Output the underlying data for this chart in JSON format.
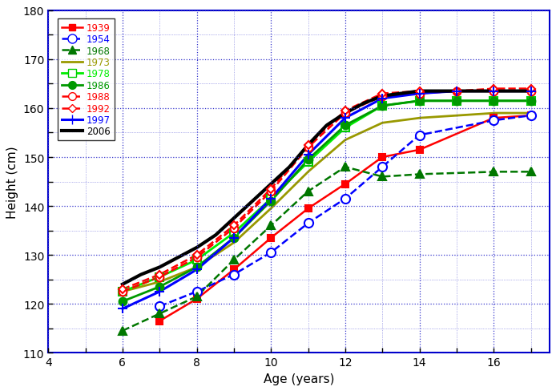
{
  "title": "",
  "xlabel": "Age (years)",
  "ylabel": "Height (cm)",
  "xlim": [
    4,
    17.5
  ],
  "ylim": [
    110,
    180
  ],
  "xticks": [
    4,
    6,
    8,
    10,
    12,
    14,
    16
  ],
  "yticks": [
    110,
    120,
    130,
    140,
    150,
    160,
    170,
    180
  ],
  "background_color": "#ffffff",
  "grid_color": "#3333cc",
  "border_color": "#0000cc",
  "series": [
    {
      "label": "1939",
      "color": "#ff0000",
      "linestyle": "-",
      "marker": "s",
      "markerfacecolor": "#ff0000",
      "markeredgecolor": "#ff0000",
      "linewidth": 1.8,
      "markersize": 6,
      "ages": [
        7,
        8,
        9,
        10,
        11,
        12,
        13,
        14,
        16,
        17
      ],
      "heights": [
        116.5,
        121.0,
        127.0,
        133.5,
        139.5,
        144.5,
        150.0,
        151.5,
        158.0,
        158.5
      ]
    },
    {
      "label": "1954",
      "color": "#0000ff",
      "linestyle": "--",
      "marker": "o",
      "markerfacecolor": "#ffffff",
      "markeredgecolor": "#0000ff",
      "linewidth": 1.8,
      "markersize": 8,
      "ages": [
        7,
        8,
        9,
        10,
        11,
        12,
        13,
        14,
        16,
        17
      ],
      "heights": [
        119.5,
        122.5,
        126.0,
        130.5,
        136.5,
        141.5,
        148.0,
        154.5,
        157.5,
        158.5
      ]
    },
    {
      "label": "1968",
      "color": "#007700",
      "linestyle": "--",
      "marker": "^",
      "markerfacecolor": "#007700",
      "markeredgecolor": "#007700",
      "linewidth": 1.8,
      "markersize": 7,
      "ages": [
        6,
        7,
        8,
        9,
        10,
        11,
        12,
        13,
        14,
        16,
        17
      ],
      "heights": [
        114.5,
        118.0,
        121.5,
        129.0,
        136.0,
        143.0,
        148.0,
        146.0,
        146.5,
        147.0,
        147.0
      ]
    },
    {
      "label": "1973",
      "color": "#999900",
      "linestyle": "-",
      "marker": "None",
      "markerfacecolor": "#999900",
      "markeredgecolor": "#999900",
      "linewidth": 2.0,
      "markersize": 6,
      "ages": [
        6,
        7,
        8,
        9,
        10,
        11,
        12,
        13,
        14,
        15,
        16,
        17
      ],
      "heights": [
        122.5,
        124.5,
        127.5,
        132.5,
        139.5,
        147.0,
        153.5,
        157.0,
        158.0,
        158.5,
        159.0,
        159.0
      ]
    },
    {
      "label": "1978",
      "color": "#00ee00",
      "linestyle": "-",
      "marker": "s",
      "markerfacecolor": "#ffffff",
      "markeredgecolor": "#00cc00",
      "linewidth": 2.0,
      "markersize": 7,
      "ages": [
        6,
        7,
        8,
        9,
        10,
        11,
        12,
        13,
        14,
        15,
        16,
        17
      ],
      "heights": [
        122.5,
        125.5,
        129.0,
        134.5,
        141.5,
        149.0,
        156.0,
        160.5,
        161.5,
        161.5,
        161.5,
        161.5
      ]
    },
    {
      "label": "1986",
      "color": "#009900",
      "linestyle": "-",
      "marker": "o",
      "markerfacecolor": "#009900",
      "markeredgecolor": "#009900",
      "linewidth": 2.0,
      "markersize": 7,
      "ages": [
        6,
        7,
        8,
        9,
        10,
        11,
        12,
        13,
        14,
        15,
        16,
        17
      ],
      "heights": [
        120.5,
        123.5,
        127.5,
        133.5,
        141.0,
        149.5,
        156.5,
        160.5,
        161.5,
        161.5,
        161.5,
        161.5
      ]
    },
    {
      "label": "1988",
      "color": "#ff0000",
      "linestyle": "--",
      "marker": "o",
      "markerfacecolor": "#ffffff",
      "markeredgecolor": "#ff0000",
      "linewidth": 1.8,
      "markersize": 7,
      "ages": [
        6,
        7,
        8,
        9,
        10,
        11,
        12,
        13,
        14,
        15,
        16,
        17
      ],
      "heights": [
        122.5,
        125.5,
        129.5,
        135.5,
        143.0,
        152.0,
        159.0,
        162.5,
        163.0,
        163.5,
        163.5,
        163.5
      ]
    },
    {
      "label": "1992",
      "color": "#ff0000",
      "linestyle": "--",
      "marker": "D",
      "markerfacecolor": "#ffffff",
      "markeredgecolor": "#ff0000",
      "linewidth": 1.8,
      "markersize": 5,
      "ages": [
        6,
        7,
        8,
        9,
        10,
        11,
        12,
        13,
        14,
        15,
        16,
        17
      ],
      "heights": [
        123.0,
        126.0,
        130.0,
        136.0,
        143.5,
        152.5,
        159.5,
        163.0,
        163.5,
        163.5,
        164.0,
        164.0
      ]
    },
    {
      "label": "1997",
      "color": "#0000ff",
      "linestyle": "-",
      "marker": "+",
      "markerfacecolor": "#0000ff",
      "markeredgecolor": "#0000ff",
      "linewidth": 2.2,
      "markersize": 9,
      "ages": [
        6,
        7,
        8,
        9,
        10,
        11,
        12,
        13,
        14,
        15,
        16,
        17
      ],
      "heights": [
        119.0,
        122.5,
        127.0,
        133.5,
        141.5,
        150.5,
        158.0,
        162.0,
        163.0,
        163.5,
        163.5,
        163.5
      ]
    },
    {
      "label": "2006",
      "color": "#000000",
      "linestyle": "-",
      "marker": "None",
      "markerfacecolor": "#000000",
      "markeredgecolor": "#000000",
      "linewidth": 3.0,
      "markersize": 6,
      "ages": [
        6,
        6.5,
        7,
        7.5,
        8,
        8.5,
        9,
        9.5,
        10,
        10.5,
        11,
        11.5,
        12,
        12.5,
        13,
        13.5,
        14,
        15,
        16,
        17
      ],
      "heights": [
        124.0,
        126.0,
        127.5,
        129.5,
        131.5,
        134.0,
        137.5,
        141.0,
        144.5,
        148.0,
        152.5,
        156.5,
        159.0,
        161.0,
        162.5,
        163.0,
        163.5,
        163.5,
        163.5,
        163.5
      ]
    }
  ]
}
